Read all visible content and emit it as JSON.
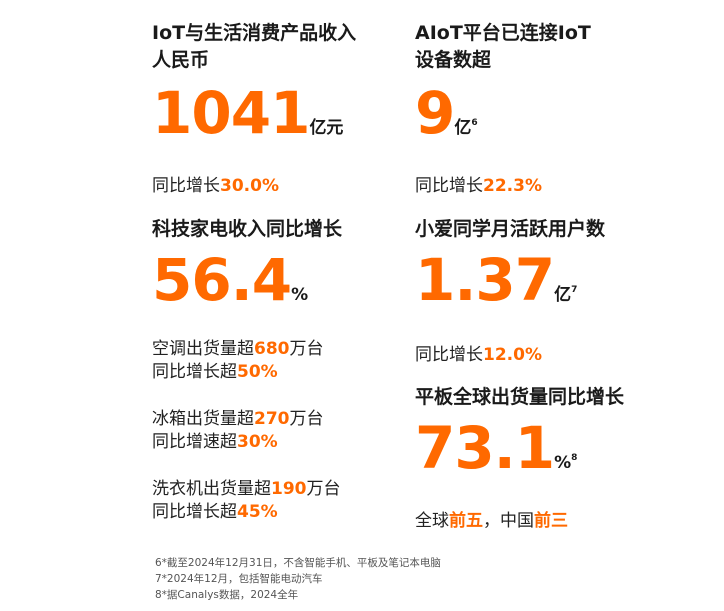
{
  "colors": {
    "accent": "#ff6900",
    "text": "#1a1a1a"
  },
  "left": {
    "iot": {
      "title_l1": "IoT与生活消费产品收入",
      "title_l2": "人民币",
      "value": "1041",
      "unit": "亿元",
      "growth_label": "同比增长",
      "growth_value": "30.0%"
    },
    "appliance": {
      "title": "科技家电收入同比增长",
      "value": "56.4",
      "unit": "%",
      "items": [
        {
          "l1_label": "空调出货量超",
          "l1_value": "680",
          "l1_unit": "万台",
          "l2_label": "同比增长超",
          "l2_value": "50%"
        },
        {
          "l1_label": "冰箱出货量超",
          "l1_value": "270",
          "l1_unit": "万台",
          "l2_label": "同比增速超",
          "l2_value": "30%"
        },
        {
          "l1_label": "洗衣机出货量超",
          "l1_value": "190",
          "l1_unit": "万台",
          "l2_label": "同比增长超",
          "l2_value": "45%"
        }
      ]
    }
  },
  "right": {
    "aiot": {
      "title_l1": "AIoT平台已连接IoT",
      "title_l2": "设备数超",
      "value": "9",
      "unit": "亿",
      "note": "6",
      "growth_label": "同比增长",
      "growth_value": "22.3%"
    },
    "xiaoai": {
      "title": "小爱同学月活跃用户数",
      "value": "1.37",
      "unit": "亿",
      "note": "7",
      "growth_label": "同比增长",
      "growth_value": "12.0%"
    },
    "tablet": {
      "title": "平板全球出货量同比增长",
      "value": "73.1",
      "unit": "%",
      "note": "8",
      "rank_a_label": "全球",
      "rank_a_value": "前五",
      "sep": "，",
      "rank_b_label": "中国",
      "rank_b_value": "前三"
    }
  },
  "footnotes": [
    "6*截至2024年12月31日，不含智能手机、平板及笔记本电脑",
    "7*2024年12月，包括智能电动汽车",
    "8*据Canalys数据，2024全年"
  ]
}
